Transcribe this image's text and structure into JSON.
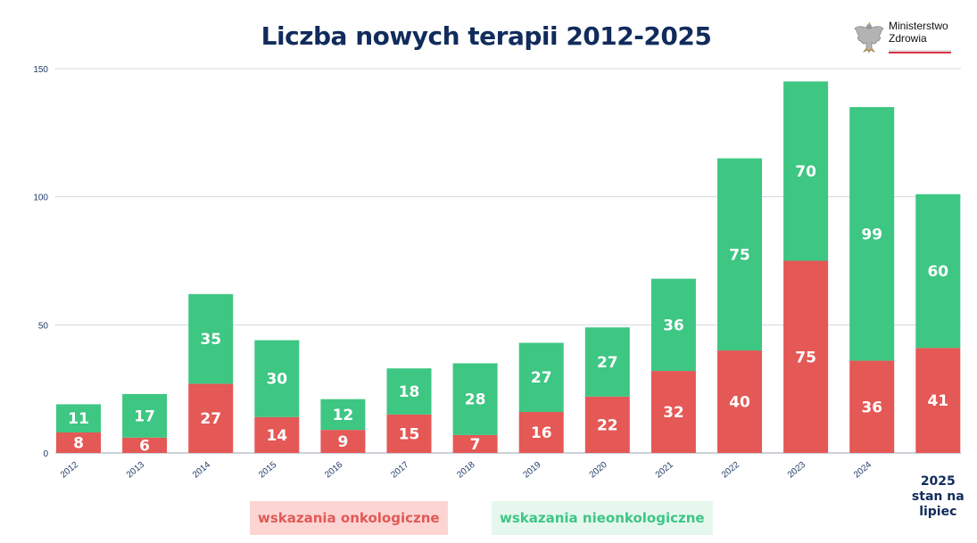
{
  "title": "Liczba nowych terapii 2012-2025",
  "logo": {
    "line1": "Ministerstwo",
    "line2": "Zdrowia"
  },
  "colors": {
    "oncology": "#e45855",
    "nononcology": "#3ec683",
    "title": "#112c5c",
    "axis_text": "#1f3a66",
    "grid": "#d3d7de"
  },
  "chart_data": {
    "type": "bar",
    "stacked": true,
    "title": "Liczba nowych terapii 2012-2025",
    "xlabel": "",
    "ylabel": "",
    "ylim": [
      0,
      150
    ],
    "yticks": [
      0,
      50,
      100,
      150
    ],
    "grid": true,
    "categories": [
      "2012",
      "2013",
      "2014",
      "2015",
      "2016",
      "2017",
      "2018",
      "2019",
      "2020",
      "2021",
      "2022",
      "2023",
      "2024",
      "2025 stan na lipiec"
    ],
    "category_labels": [
      [
        "2012"
      ],
      [
        "2013"
      ],
      [
        "2014"
      ],
      [
        "2015"
      ],
      [
        "2016"
      ],
      [
        "2017"
      ],
      [
        "2018"
      ],
      [
        "2019"
      ],
      [
        "2020"
      ],
      [
        "2021"
      ],
      [
        "2022"
      ],
      [
        "2023"
      ],
      [
        "2024"
      ],
      [
        "2025",
        "stan na",
        "lipiec"
      ]
    ],
    "series": [
      {
        "name": "wskazania onkologiczne",
        "values": [
          8,
          6,
          27,
          14,
          9,
          15,
          7,
          16,
          22,
          32,
          40,
          75,
          36,
          41
        ]
      },
      {
        "name": "wskazania nieonkologiczne",
        "values": [
          11,
          17,
          35,
          30,
          12,
          18,
          28,
          27,
          27,
          36,
          75,
          70,
          99,
          60
        ]
      }
    ],
    "legend": "bottom"
  }
}
